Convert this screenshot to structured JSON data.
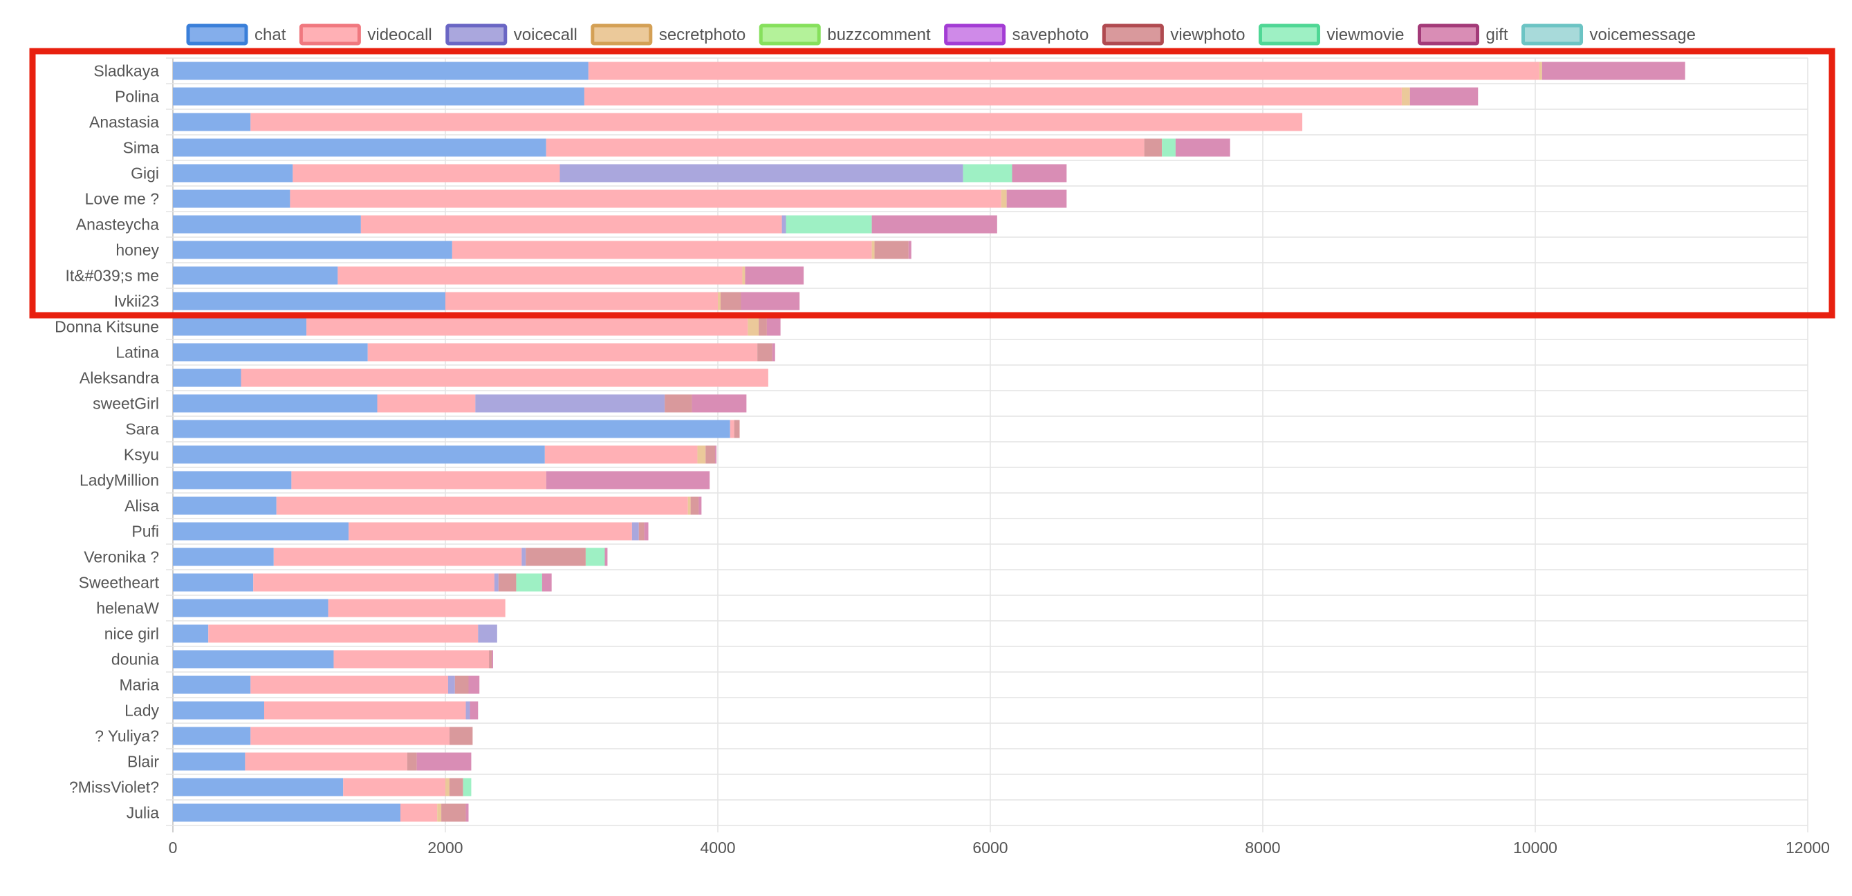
{
  "chart_data": {
    "type": "bar",
    "orientation": "horizontal",
    "stacked": true,
    "title": "",
    "xlabel": "",
    "ylabel": "",
    "xlim": [
      0,
      12000
    ],
    "x_ticks": [
      "0",
      "2000",
      "4000",
      "6000",
      "8000",
      "10000",
      "12000"
    ],
    "grid": true,
    "legend_position": "top",
    "categories": [
      "Sladkaya",
      "Polina",
      "Anastasia",
      "Sima",
      "Gigi",
      "Love me ?",
      "Anasteycha",
      "honey",
      "It&#039;s me",
      "Ivkii23",
      "Donna Kitsune",
      "Latina",
      "Aleksandra",
      "sweetGirl",
      "Sara",
      "Ksyu",
      "LadyMillion",
      "Alisa",
      "Pufi",
      "Veronika ?",
      "Sweetheart",
      "helenaW",
      "nice girl",
      "dounia",
      "Maria",
      "Lady",
      "? Yuliya?",
      "Blair",
      "?MissViolet?",
      "Julia"
    ],
    "series": [
      {
        "name": "chat",
        "color": "#84aeeb",
        "border": "#3a7fd9",
        "values": [
          3050,
          3020,
          570,
          2740,
          880,
          860,
          1380,
          2050,
          1210,
          2000,
          980,
          1430,
          500,
          1500,
          4090,
          2730,
          870,
          760,
          1290,
          740,
          590,
          1140,
          260,
          1180,
          570,
          670,
          570,
          530,
          1250,
          1670
        ]
      },
      {
        "name": "videocall",
        "color": "#ffb0b5",
        "border": "#f0787f",
        "values": [
          6980,
          6000,
          7720,
          4390,
          1960,
          5220,
          3090,
          3080,
          2970,
          2000,
          3240,
          2860,
          3870,
          720,
          30,
          1120,
          1870,
          3020,
          2080,
          1820,
          1770,
          1300,
          1980,
          1140,
          1450,
          1480,
          1460,
          1190,
          750,
          270
        ]
      },
      {
        "name": "voicecall",
        "color": "#aaa7dd",
        "border": "#6a66c4",
        "values": [
          0,
          0,
          0,
          0,
          2960,
          0,
          30,
          0,
          0,
          0,
          0,
          0,
          0,
          1390,
          0,
          0,
          0,
          0,
          50,
          30,
          30,
          0,
          140,
          0,
          50,
          30,
          0,
          0,
          0,
          0
        ]
      },
      {
        "name": "secretphoto",
        "color": "#ebc99a",
        "border": "#d4a055",
        "values": [
          20,
          60,
          0,
          0,
          0,
          40,
          0,
          20,
          20,
          20,
          80,
          0,
          0,
          0,
          0,
          60,
          0,
          20,
          0,
          0,
          0,
          0,
          0,
          0,
          0,
          0,
          0,
          0,
          30,
          30
        ]
      },
      {
        "name": "buzzcomment",
        "color": "#b4f29a",
        "border": "#86e05c",
        "values": [
          0,
          0,
          0,
          0,
          0,
          0,
          0,
          0,
          0,
          0,
          0,
          0,
          0,
          0,
          0,
          0,
          0,
          0,
          0,
          0,
          0,
          0,
          0,
          0,
          0,
          0,
          0,
          0,
          0,
          0
        ]
      },
      {
        "name": "savephoto",
        "color": "#cf8ae8",
        "border": "#a33cd4",
        "values": [
          0,
          0,
          0,
          0,
          0,
          0,
          0,
          0,
          0,
          0,
          0,
          0,
          0,
          0,
          0,
          0,
          0,
          0,
          0,
          0,
          0,
          0,
          0,
          0,
          0,
          0,
          0,
          0,
          0,
          0
        ]
      },
      {
        "name": "viewphoto",
        "color": "#d9999c",
        "border": "#b04a50",
        "values": [
          0,
          0,
          0,
          130,
          0,
          0,
          0,
          250,
          0,
          150,
          60,
          110,
          0,
          200,
          40,
          70,
          0,
          60,
          40,
          440,
          130,
          0,
          0,
          20,
          100,
          0,
          170,
          70,
          100,
          180
        ]
      },
      {
        "name": "viewmovie",
        "color": "#9ef0c4",
        "border": "#4fd795",
        "values": [
          0,
          0,
          0,
          100,
          360,
          0,
          630,
          0,
          0,
          0,
          0,
          0,
          0,
          0,
          0,
          0,
          0,
          0,
          0,
          140,
          190,
          0,
          0,
          0,
          0,
          0,
          0,
          0,
          60,
          0
        ]
      },
      {
        "name": "gift",
        "color": "#d98db5",
        "border": "#a33a78",
        "values": [
          1050,
          500,
          0,
          400,
          400,
          440,
          920,
          20,
          430,
          430,
          100,
          20,
          0,
          400,
          0,
          10,
          1200,
          20,
          30,
          20,
          70,
          0,
          0,
          10,
          80,
          60,
          0,
          400,
          0,
          20
        ]
      },
      {
        "name": "voicemessage",
        "color": "#a8dada",
        "border": "#6cc4c4",
        "values": [
          0,
          0,
          0,
          0,
          0,
          0,
          0,
          0,
          0,
          0,
          0,
          0,
          0,
          0,
          0,
          0,
          0,
          0,
          0,
          0,
          0,
          0,
          0,
          0,
          0,
          0,
          0,
          0,
          0,
          0
        ]
      }
    ]
  },
  "highlight": {
    "color": "#e8200f",
    "categories": [
      "Sladkaya",
      "Ivkii23"
    ]
  }
}
